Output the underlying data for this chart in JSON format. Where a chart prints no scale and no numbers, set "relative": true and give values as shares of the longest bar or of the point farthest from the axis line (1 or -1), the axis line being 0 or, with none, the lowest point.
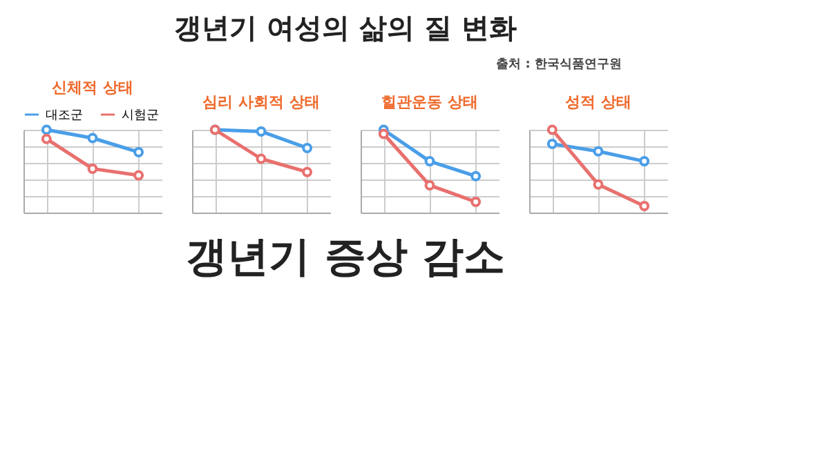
{
  "chart_data": [
    {
      "type": "line",
      "title": "신체적 상태",
      "categories": [
        null,
        null,
        null
      ],
      "relative": true,
      "grid": true,
      "marker": "circle",
      "line_style": "solid",
      "legend": "top",
      "series": [
        {
          "name": "대조군",
          "color": "#4a9ee8",
          "values": [
            1,
            0.9,
            0.73
          ]
        },
        {
          "name": "시험군",
          "color": "#e8706e",
          "values": [
            0.89,
            0.53,
            0.45
          ]
        }
      ],
      "annotations": [
        "갱년기 여성의 삶의 질 변화",
        "출처 : 한국식품연구원",
        "갱년기 증상 감소"
      ]
    },
    {
      "type": "line",
      "title": "심리 사회적 상태",
      "categories": [
        null,
        null,
        null
      ],
      "relative": true,
      "grid": true,
      "marker": "circle",
      "line_style": "solid",
      "series": [
        {
          "color": "#4a9ee8",
          "values": [
            1,
            0.98,
            0.78
          ]
        },
        {
          "color": "#e8706e",
          "values": [
            1,
            0.65,
            0.49
          ]
        }
      ]
    },
    {
      "type": "line",
      "title": "힐관운동 상태",
      "categories": [
        null,
        null,
        null
      ],
      "relative": true,
      "grid": true,
      "marker": "circle",
      "line_style": "solid",
      "series": [
        {
          "color": "#4a9ee8",
          "values": [
            1,
            0.62,
            0.44
          ]
        },
        {
          "color": "#e8706e",
          "values": [
            0.95,
            0.33,
            0.13
          ]
        }
      ]
    },
    {
      "type": "line",
      "title": "성적 상태",
      "categories": [
        null,
        null,
        null
      ],
      "relative": true,
      "grid": true,
      "marker": "circle",
      "line_style": "solid",
      "series": [
        {
          "color": "#4a9ee8",
          "values": [
            0.83,
            0.74,
            0.62
          ]
        },
        {
          "color": "#e8706e",
          "values": [
            1,
            0.34,
            0.08
          ]
        }
      ]
    }
  ]
}
